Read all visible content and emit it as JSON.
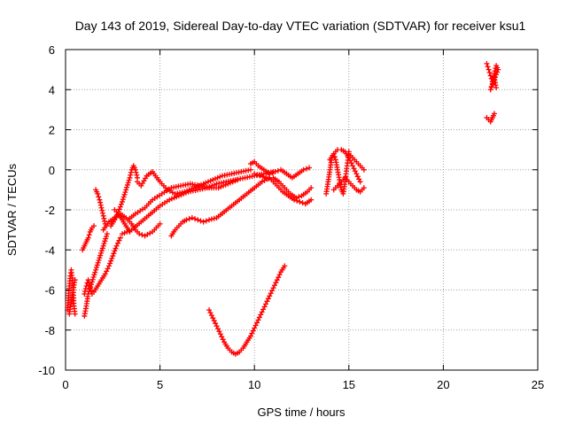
{
  "chart_data": {
    "type": "scatter",
    "title": "Day 143 of 2019, Sidereal Day-to-day VTEC variation (SDTVAR) for receiver ksu1",
    "xlabel": "GPS time / hours",
    "ylabel": "SDTVAR / TECUs",
    "xlim": [
      0,
      25
    ],
    "ylim": [
      -10,
      6
    ],
    "xticks": [
      "0",
      "5",
      "10",
      "15",
      "20",
      "25"
    ],
    "yticks": [
      "-10",
      "-8",
      "-6",
      "-4",
      "-2",
      "0",
      "2",
      "4",
      "6"
    ],
    "grid": true,
    "marker": "plus",
    "color": "#ff0000",
    "series": [
      {
        "x": [
          0.1,
          0.15,
          0.2,
          0.25,
          0.3,
          0.35,
          0.4,
          0.45,
          0.5
        ],
        "y": [
          -7.0,
          -6.4,
          -5.8,
          -5.3,
          -5.0,
          -5.4,
          -6.0,
          -6.8,
          -7.2
        ]
      },
      {
        "x": [
          0.2,
          0.3,
          0.4,
          0.5
        ],
        "y": [
          -7.2,
          -6.6,
          -6.0,
          -5.5
        ]
      },
      {
        "x": [
          0.9,
          1.0,
          1.1,
          1.2,
          1.3,
          1.4,
          1.5
        ],
        "y": [
          -4.0,
          -3.8,
          -3.6,
          -3.4,
          -3.1,
          -2.9,
          -2.8
        ]
      },
      {
        "x": [
          1.0,
          1.1,
          1.2,
          1.4,
          1.6,
          1.8,
          2.0,
          2.2
        ],
        "y": [
          -7.3,
          -6.8,
          -6.2,
          -5.6,
          -5.0,
          -4.4,
          -3.8,
          -3.2
        ]
      },
      {
        "x": [
          1.0,
          1.1,
          1.2,
          1.3,
          1.4
        ],
        "y": [
          -6.2,
          -5.8,
          -5.5,
          -5.9,
          -6.2
        ]
      },
      {
        "x": [
          1.5,
          1.7,
          1.9,
          2.1,
          2.3,
          2.5,
          2.7,
          2.9
        ],
        "y": [
          -6.1,
          -5.8,
          -5.5,
          -5.2,
          -4.8,
          -4.3,
          -3.8,
          -3.4
        ]
      },
      {
        "x": [
          1.6,
          1.7,
          1.8,
          1.9,
          2.0,
          2.1
        ],
        "y": [
          -1.0,
          -1.2,
          -1.5,
          -1.9,
          -2.3,
          -2.7
        ]
      },
      {
        "x": [
          2.0,
          2.3,
          2.6,
          2.9,
          3.2,
          3.5,
          3.7,
          3.9,
          4.2,
          4.6,
          5.0
        ],
        "y": [
          -3.0,
          -2.6,
          -2.4,
          -2.2,
          -2.4,
          -2.7,
          -3.0,
          -3.2,
          -3.3,
          -3.1,
          -2.7
        ]
      },
      {
        "x": [
          2.4,
          2.6,
          2.8,
          3.0,
          3.2,
          3.4,
          3.5,
          3.6,
          3.7,
          3.8
        ],
        "y": [
          -2.8,
          -2.5,
          -2.1,
          -1.6,
          -1.0,
          -0.4,
          0.0,
          0.2,
          0.0,
          -0.4
        ]
      },
      {
        "x": [
          2.6,
          2.8,
          3.0,
          3.2,
          3.4
        ],
        "y": [
          -2.0,
          -2.2,
          -2.5,
          -2.8,
          -3.1
        ]
      },
      {
        "x": [
          3.8,
          4.0,
          4.3,
          4.6,
          5.0,
          5.4,
          5.8,
          6.3,
          6.8,
          7.3,
          7.8,
          8.3,
          8.8,
          9.3,
          9.8
        ],
        "y": [
          -0.6,
          -0.8,
          -0.3,
          -0.1,
          -0.6,
          -1.0,
          -1.2,
          -1.1,
          -0.9,
          -0.7,
          -0.5,
          -0.3,
          -0.2,
          -0.1,
          0.0
        ]
      },
      {
        "x": [
          3.0,
          3.5,
          4.0,
          4.5,
          5.0,
          5.5,
          6.0,
          6.5,
          7.0,
          7.5,
          8.0,
          8.5,
          9.0,
          9.5,
          10.0,
          10.5,
          11.0
        ],
        "y": [
          -3.2,
          -3.0,
          -2.6,
          -2.2,
          -1.8,
          -1.5,
          -1.3,
          -1.1,
          -1.0,
          -0.9,
          -0.7,
          -0.6,
          -0.5,
          -0.4,
          -0.3,
          -0.2,
          -0.1
        ]
      },
      {
        "x": [
          3.3,
          3.7,
          4.2,
          4.6,
          5.1,
          5.6,
          6.1,
          6.6,
          7.1,
          7.6,
          8.1,
          8.6,
          9.1
        ],
        "y": [
          -2.5,
          -2.2,
          -1.9,
          -1.5,
          -1.2,
          -0.9,
          -0.8,
          -0.7,
          -0.8,
          -0.9,
          -0.9,
          -0.7,
          -0.5
        ]
      },
      {
        "x": [
          5.6,
          5.8,
          6.0,
          6.2,
          6.4,
          6.7,
          7.0,
          7.3,
          7.6,
          8.0,
          8.4,
          8.8,
          9.2,
          9.6,
          10.0,
          10.4,
          10.8
        ],
        "y": [
          -3.3,
          -3.0,
          -2.8,
          -2.6,
          -2.5,
          -2.4,
          -2.5,
          -2.6,
          -2.5,
          -2.4,
          -2.1,
          -1.8,
          -1.5,
          -1.2,
          -0.9,
          -0.6,
          -0.4
        ]
      },
      {
        "x": [
          7.6,
          7.8,
          8.0,
          8.2,
          8.4,
          8.6,
          8.8,
          9.0,
          9.2,
          9.4,
          9.6,
          9.8,
          10.0,
          10.2,
          10.4,
          10.6,
          10.8,
          11.0,
          11.2,
          11.4,
          11.6
        ],
        "y": [
          -7.0,
          -7.4,
          -7.8,
          -8.2,
          -8.6,
          -8.9,
          -9.1,
          -9.2,
          -9.1,
          -8.9,
          -8.6,
          -8.3,
          -7.9,
          -7.5,
          -7.1,
          -6.7,
          -6.3,
          -5.9,
          -5.5,
          -5.1,
          -4.8
        ]
      },
      {
        "x": [
          9.8,
          10.0,
          10.2,
          10.5,
          10.8,
          11.1,
          11.4,
          11.7,
          12.0,
          12.3,
          12.6,
          12.9
        ],
        "y": [
          0.3,
          0.4,
          0.2,
          0.0,
          -0.2,
          -0.1,
          0.0,
          -0.2,
          -0.4,
          -0.2,
          0.0,
          0.1
        ]
      },
      {
        "x": [
          10.0,
          10.3,
          10.6,
          10.9,
          11.2,
          11.5,
          11.8,
          12.1,
          12.4,
          12.7,
          13.0
        ],
        "y": [
          -0.2,
          -0.3,
          -0.4,
          -0.5,
          -0.8,
          -1.1,
          -1.3,
          -1.5,
          -1.6,
          -1.7,
          -1.5
        ]
      },
      {
        "x": [
          11.0,
          11.3,
          11.6,
          11.9,
          12.2,
          12.5,
          12.8,
          13.0
        ],
        "y": [
          -0.4,
          -0.6,
          -0.9,
          -1.2,
          -1.4,
          -1.3,
          -1.1,
          -0.9
        ]
      },
      {
        "x": [
          13.8,
          13.9,
          14.0,
          14.1,
          14.2,
          14.3,
          14.4,
          14.5,
          14.6,
          14.7,
          14.8,
          14.9,
          15.0
        ],
        "y": [
          -1.2,
          -0.6,
          0.0,
          0.6,
          0.8,
          0.5,
          0.0,
          -0.5,
          -1.0,
          -1.2,
          -0.6,
          0.2,
          0.9
        ]
      },
      {
        "x": [
          14.0,
          14.2,
          14.4,
          14.6,
          14.8,
          15.0,
          15.2,
          15.4,
          15.6
        ],
        "y": [
          0.5,
          0.8,
          1.0,
          1.0,
          0.9,
          0.6,
          0.2,
          -0.2,
          -0.6
        ]
      },
      {
        "x": [
          14.2,
          14.4,
          14.6,
          14.8,
          15.0,
          15.2,
          15.4,
          15.6,
          15.8
        ],
        "y": [
          -1.0,
          -0.8,
          -0.6,
          -0.4,
          -0.6,
          -0.8,
          -1.0,
          -1.1,
          -0.9
        ]
      },
      {
        "x": [
          15.0,
          15.2,
          15.4,
          15.6,
          15.8
        ],
        "y": [
          0.8,
          0.6,
          0.4,
          0.2,
          0.0
        ]
      },
      {
        "x": [
          22.3,
          22.4,
          22.5,
          22.6,
          22.7,
          22.8,
          22.9,
          22.5,
          22.6,
          22.7,
          22.8
        ],
        "y": [
          5.3,
          5.0,
          4.7,
          4.4,
          4.8,
          5.2,
          5.0,
          4.0,
          4.3,
          4.6,
          4.1
        ]
      },
      {
        "x": [
          22.3,
          22.4,
          22.5,
          22.6,
          22.7
        ],
        "y": [
          2.6,
          2.5,
          2.4,
          2.6,
          2.8
        ]
      }
    ]
  }
}
